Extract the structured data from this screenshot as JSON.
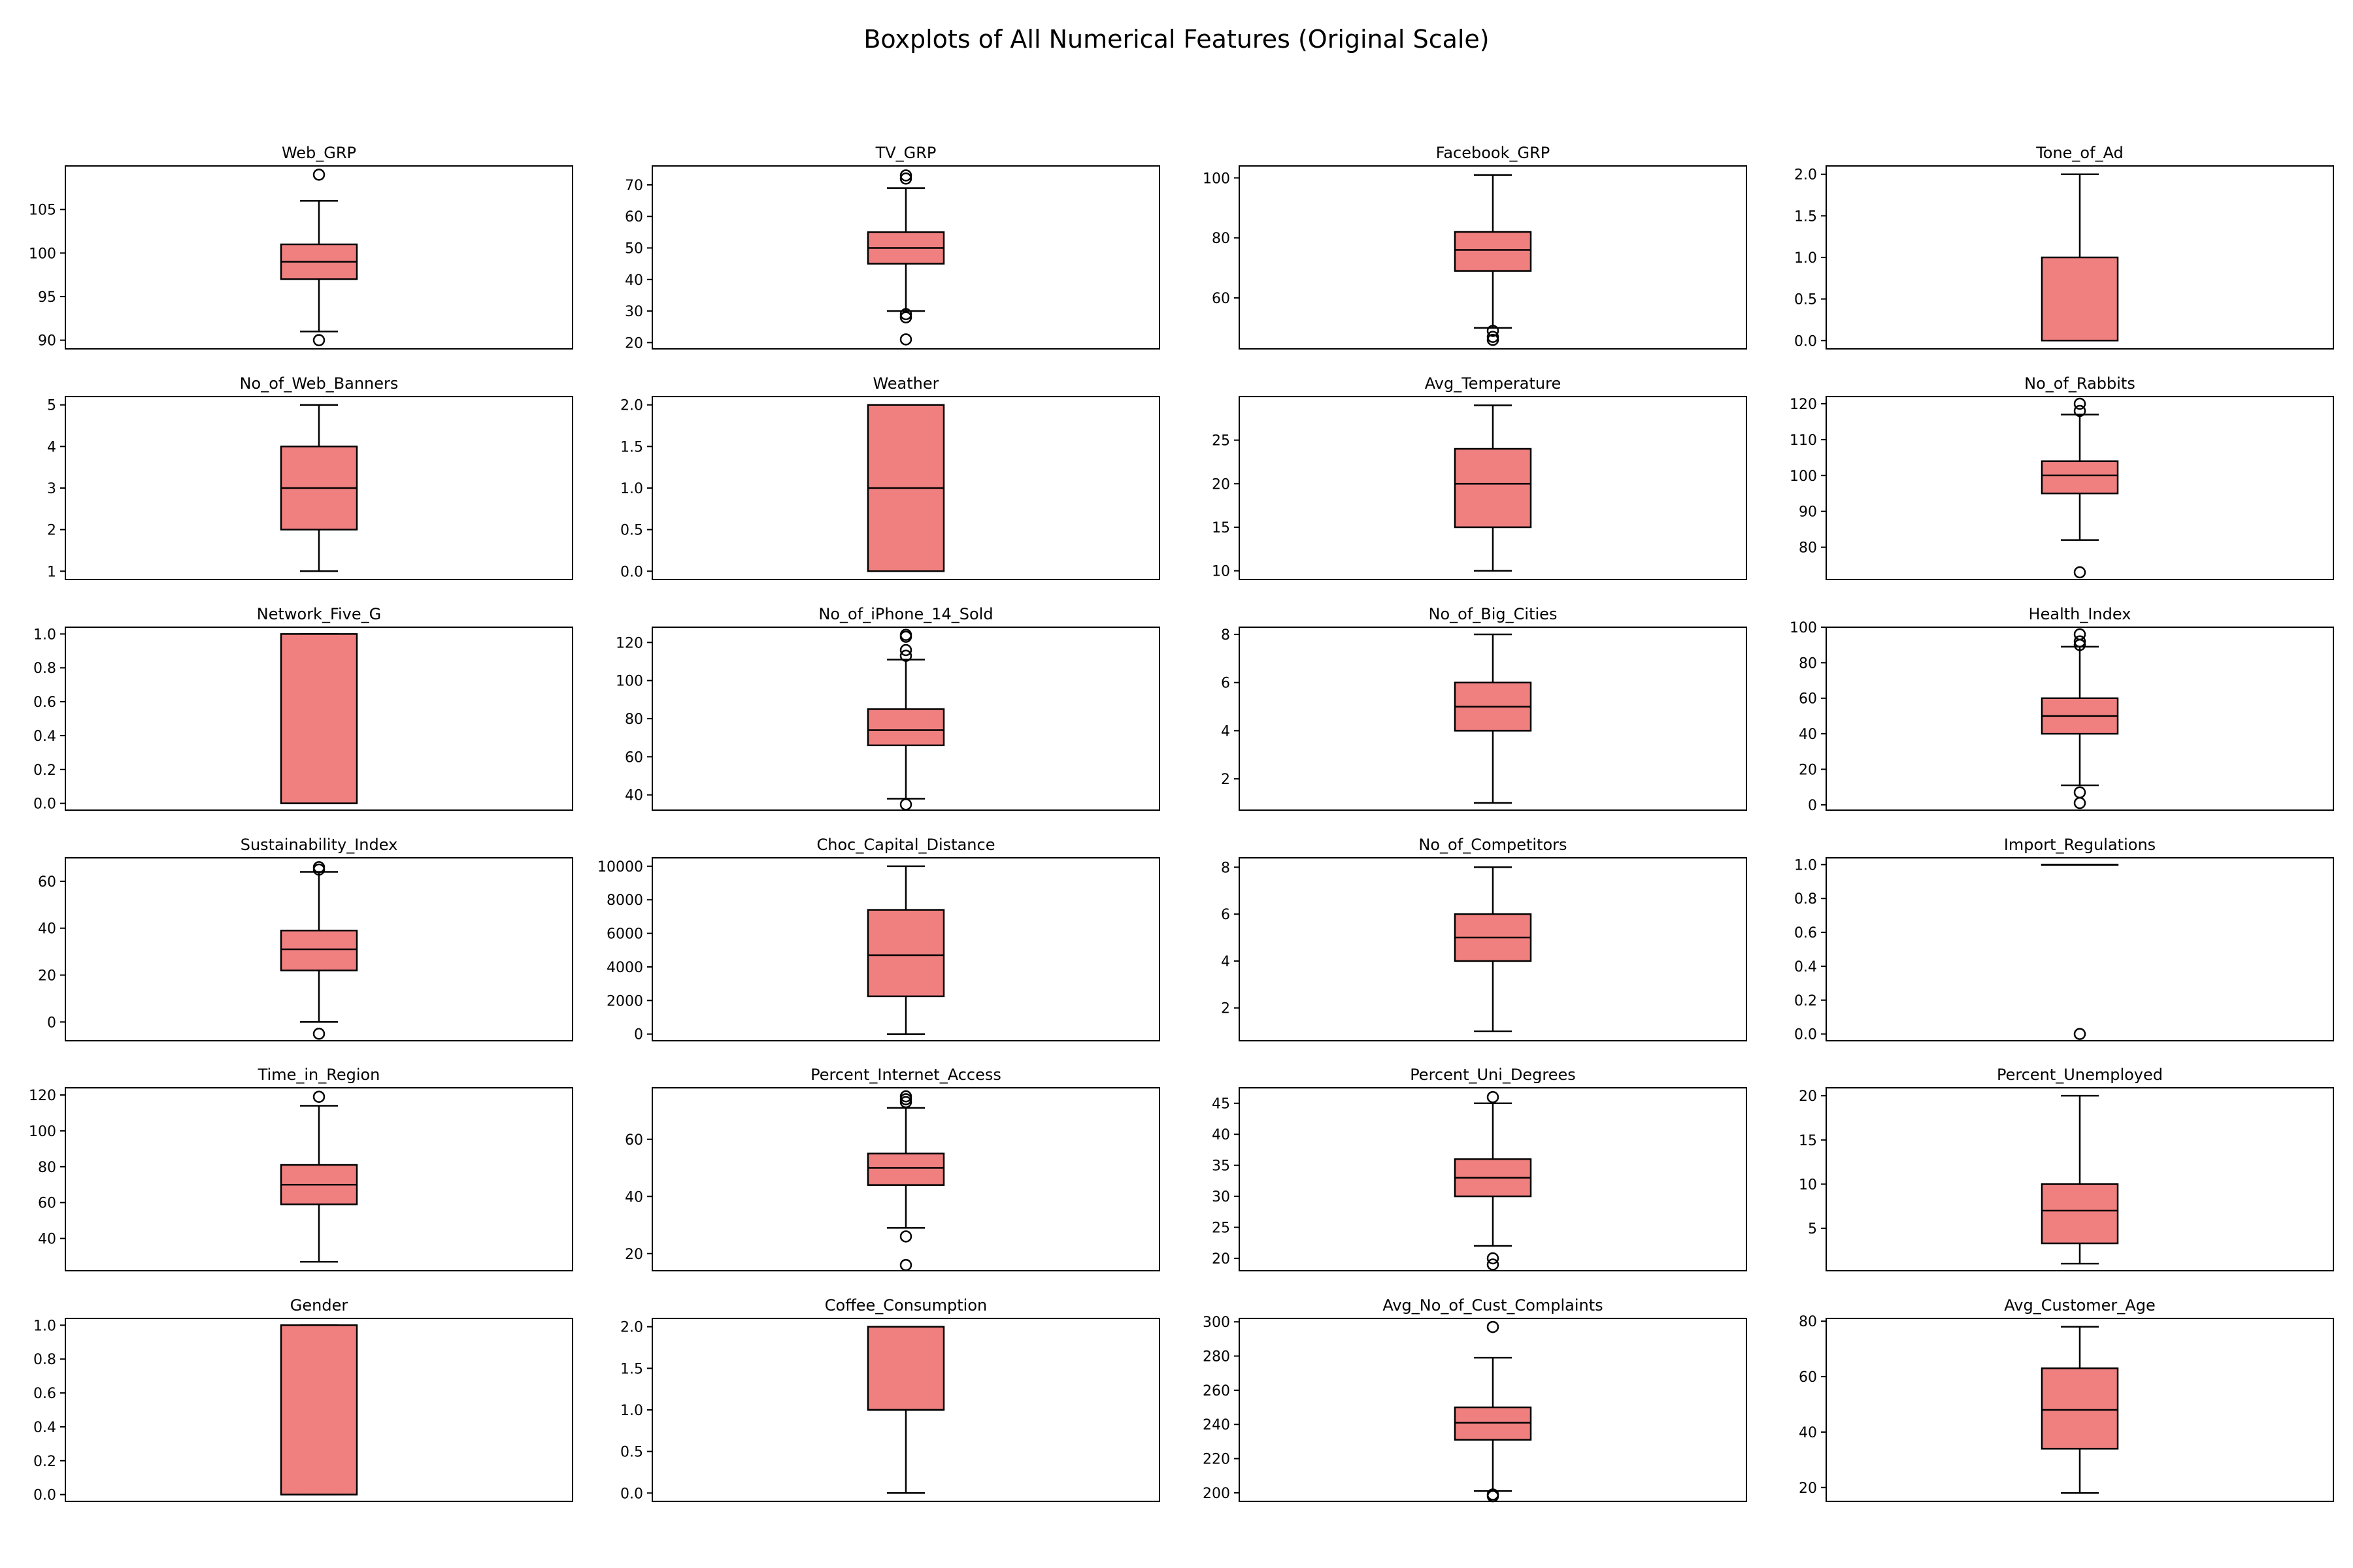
{
  "figure": {
    "title": "Boxplots of All Numerical Features (Original Scale)"
  },
  "style": {
    "box_fill": "#f08080",
    "line": "#000000",
    "background": "#ffffff"
  },
  "chart_data": [
    {
      "type": "box",
      "title": "Web_GRP",
      "ylim": [
        89,
        110
      ],
      "yticks": [
        90,
        95,
        100,
        105
      ],
      "box": {
        "min": 91,
        "q1": 97,
        "median": 99,
        "q3": 101,
        "max": 106
      },
      "outliers": [
        90,
        109
      ]
    },
    {
      "type": "box",
      "title": "TV_GRP",
      "ylim": [
        18,
        76
      ],
      "yticks": [
        20,
        30,
        40,
        50,
        60,
        70
      ],
      "box": {
        "min": 30,
        "q1": 45,
        "median": 50,
        "q3": 55,
        "max": 69
      },
      "outliers": [
        21,
        28,
        29,
        72,
        73
      ]
    },
    {
      "type": "box",
      "title": "Facebook_GRP",
      "ylim": [
        43,
        104
      ],
      "yticks": [
        60,
        80,
        100
      ],
      "box": {
        "min": 50,
        "q1": 69,
        "median": 76,
        "q3": 82,
        "max": 101
      },
      "outliers": [
        46,
        47,
        49
      ]
    },
    {
      "type": "box",
      "title": "Tone_of_Ad",
      "ylim": [
        -0.1,
        2.1
      ],
      "yticks": [
        "0.0",
        "0.5",
        "1.0",
        "1.5",
        "2.0"
      ],
      "box": {
        "min": 0,
        "q1": 0,
        "median": 0,
        "q3": 1,
        "max": 2
      },
      "outliers": []
    },
    {
      "type": "box",
      "title": "No_of_Web_Banners",
      "ylim": [
        0.8,
        5.2
      ],
      "yticks": [
        1,
        2,
        3,
        4,
        5
      ],
      "box": {
        "min": 1,
        "q1": 2,
        "median": 3,
        "q3": 4,
        "max": 5
      },
      "outliers": []
    },
    {
      "type": "box",
      "title": "Weather",
      "ylim": [
        -0.1,
        2.1
      ],
      "yticks": [
        "0.0",
        "0.5",
        "1.0",
        "1.5",
        "2.0"
      ],
      "box": {
        "min": 0,
        "q1": 0,
        "median": 1,
        "q3": 2,
        "max": 2
      },
      "outliers": []
    },
    {
      "type": "box",
      "title": "Avg_Temperature",
      "ylim": [
        9,
        30
      ],
      "yticks": [
        10,
        15,
        20,
        25
      ],
      "box": {
        "min": 10,
        "q1": 15,
        "median": 20,
        "q3": 24,
        "max": 29
      },
      "outliers": []
    },
    {
      "type": "box",
      "title": "No_of_Rabbits",
      "ylim": [
        71,
        122
      ],
      "yticks": [
        80,
        90,
        100,
        110,
        120
      ],
      "box": {
        "min": 82,
        "q1": 95,
        "median": 100,
        "q3": 104,
        "max": 117
      },
      "outliers": [
        73,
        118,
        120
      ]
    },
    {
      "type": "box",
      "title": "Network_Five_G",
      "ylim": [
        -0.04,
        1.04
      ],
      "yticks": [
        "0.0",
        "0.2",
        "0.4",
        "0.6",
        "0.8",
        "1.0"
      ],
      "box": {
        "min": 0,
        "q1": 0,
        "median": 0,
        "q3": 1,
        "max": 1
      },
      "outliers": []
    },
    {
      "type": "box",
      "title": "No_of_iPhone_14_Sold",
      "ylim": [
        32,
        128
      ],
      "yticks": [
        40,
        60,
        80,
        100,
        120
      ],
      "box": {
        "min": 38,
        "q1": 66,
        "median": 74,
        "q3": 85,
        "max": 111
      },
      "outliers": [
        35,
        113,
        116,
        123,
        124
      ]
    },
    {
      "type": "box",
      "title": "No_of_Big_Cities",
      "ylim": [
        0.7,
        8.3
      ],
      "yticks": [
        2,
        4,
        6,
        8
      ],
      "box": {
        "min": 1,
        "q1": 4,
        "median": 5,
        "q3": 6,
        "max": 8
      },
      "outliers": []
    },
    {
      "type": "box",
      "title": "Health_Index",
      "ylim": [
        -3,
        100
      ],
      "yticks": [
        0,
        20,
        40,
        60,
        80,
        100
      ],
      "box": {
        "min": 11,
        "q1": 40,
        "median": 50,
        "q3": 60,
        "max": 89
      },
      "outliers": [
        1,
        7,
        90,
        92,
        96
      ]
    },
    {
      "type": "box",
      "title": "Sustainability_Index",
      "ylim": [
        -8,
        70
      ],
      "yticks": [
        0,
        20,
        40,
        60
      ],
      "box": {
        "min": 0,
        "q1": 22,
        "median": 31,
        "q3": 39,
        "max": 64
      },
      "outliers": [
        -5,
        65,
        66
      ]
    },
    {
      "type": "box",
      "title": "Choc_Capital_Distance",
      "ylim": [
        -400,
        10500
      ],
      "yticks": [
        0,
        2000,
        4000,
        6000,
        8000,
        10000
      ],
      "box": {
        "min": 0,
        "q1": 2250,
        "median": 4700,
        "q3": 7400,
        "max": 10000
      },
      "outliers": []
    },
    {
      "type": "box",
      "title": "No_of_Competitors",
      "ylim": [
        0.6,
        8.4
      ],
      "yticks": [
        2,
        4,
        6,
        8
      ],
      "box": {
        "min": 1,
        "q1": 4,
        "median": 5,
        "q3": 6,
        "max": 8
      },
      "outliers": []
    },
    {
      "type": "box",
      "title": "Import_Regulations",
      "ylim": [
        -0.04,
        1.04
      ],
      "yticks": [
        "0.0",
        "0.2",
        "0.4",
        "0.6",
        "0.8",
        "1.0"
      ],
      "box": {
        "min": 1,
        "q1": 1,
        "median": 1,
        "q3": 1,
        "max": 1
      },
      "outliers": [
        0
      ]
    },
    {
      "type": "box",
      "title": "Time_in_Region",
      "ylim": [
        22,
        124
      ],
      "yticks": [
        40,
        60,
        80,
        100,
        120
      ],
      "box": {
        "min": 27,
        "q1": 59,
        "median": 70,
        "q3": 81,
        "max": 114
      },
      "outliers": [
        119
      ]
    },
    {
      "type": "box",
      "title": "Percent_Internet_Access",
      "ylim": [
        14,
        78
      ],
      "yticks": [
        20,
        40,
        60
      ],
      "box": {
        "min": 29,
        "q1": 44,
        "median": 50,
        "q3": 55,
        "max": 71
      },
      "outliers": [
        16,
        26,
        73,
        74,
        75
      ]
    },
    {
      "type": "box",
      "title": "Percent_Uni_Degrees",
      "ylim": [
        18,
        47.5
      ],
      "yticks": [
        20,
        25,
        30,
        35,
        40,
        45
      ],
      "box": {
        "min": 22,
        "q1": 30,
        "median": 33,
        "q3": 36,
        "max": 45
      },
      "outliers": [
        19,
        20,
        46
      ]
    },
    {
      "type": "box",
      "title": "Percent_Unemployed",
      "ylim": [
        0.2,
        20.9
      ],
      "yticks": [
        5,
        10,
        15,
        20
      ],
      "box": {
        "min": 1,
        "q1": 3.3,
        "median": 7,
        "q3": 10,
        "max": 20
      },
      "outliers": []
    },
    {
      "type": "box",
      "title": "Gender",
      "ylim": [
        -0.04,
        1.04
      ],
      "yticks": [
        "0.0",
        "0.2",
        "0.4",
        "0.6",
        "0.8",
        "1.0"
      ],
      "box": {
        "min": 0,
        "q1": 0,
        "median": 0,
        "q3": 1,
        "max": 1
      },
      "outliers": []
    },
    {
      "type": "box",
      "title": "Coffee_Consumption",
      "ylim": [
        -0.1,
        2.1
      ],
      "yticks": [
        "0.0",
        "0.5",
        "1.0",
        "1.5",
        "2.0"
      ],
      "box": {
        "min": 0,
        "q1": 1,
        "median": 1,
        "q3": 2,
        "max": 2
      },
      "outliers": []
    },
    {
      "type": "box",
      "title": "Avg_No_of_Cust_Complaints",
      "ylim": [
        195,
        302
      ],
      "yticks": [
        200,
        220,
        240,
        260,
        280,
        300
      ],
      "box": {
        "min": 201,
        "q1": 231,
        "median": 241,
        "q3": 250,
        "max": 279
      },
      "outliers": [
        198,
        199,
        297
      ]
    },
    {
      "type": "box",
      "title": "Avg_Customer_Age",
      "ylim": [
        15,
        81
      ],
      "yticks": [
        20,
        40,
        60,
        80
      ],
      "box": {
        "min": 18,
        "q1": 34,
        "median": 48,
        "q3": 63,
        "max": 78
      },
      "outliers": []
    }
  ]
}
